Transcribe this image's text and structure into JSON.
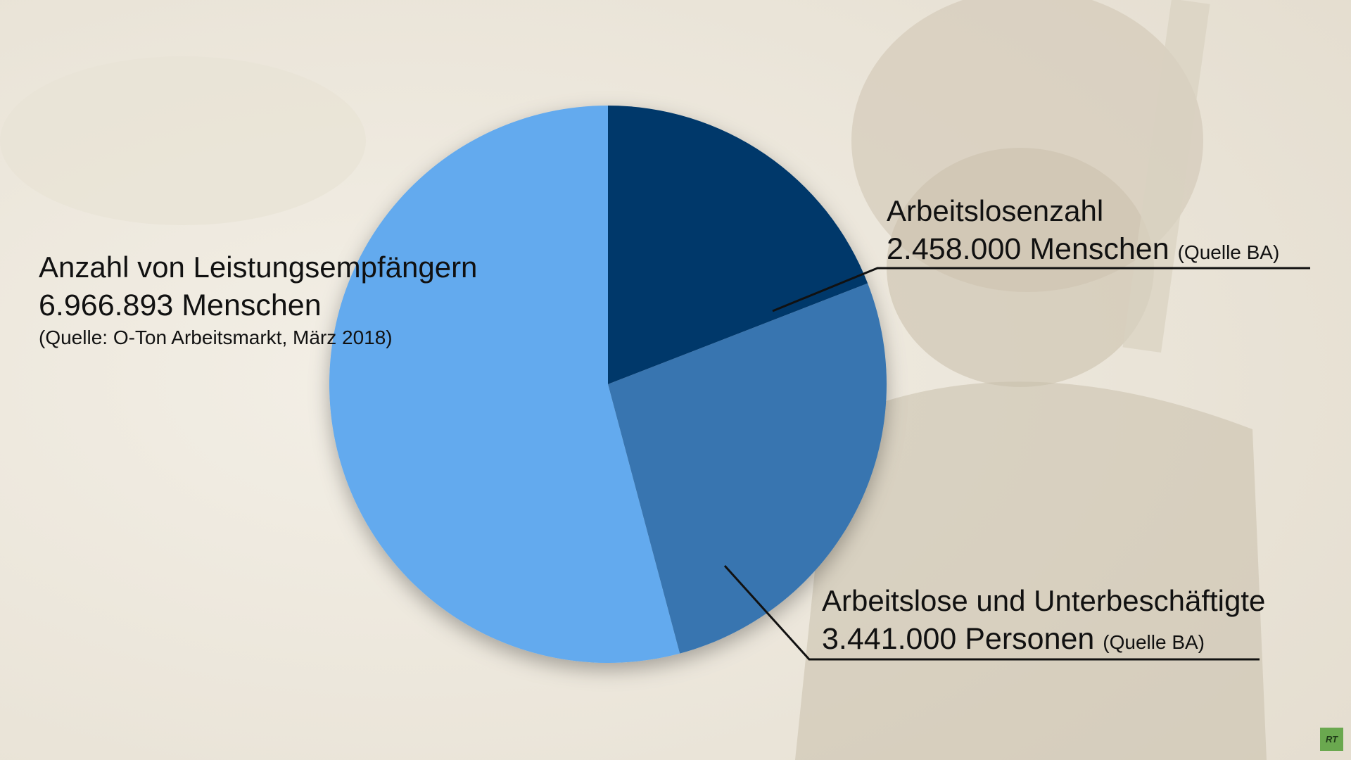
{
  "chart_data": {
    "type": "pie",
    "slices": [
      {
        "label": "Arbeitslosenzahl",
        "value": 2458000,
        "value_text": "2.458.000 Menschen",
        "source": "(Quelle BA)",
        "color": "#06376b"
      },
      {
        "label": "Arbeitslose und Unterbeschäftigte",
        "value": 3441000,
        "value_text": "3.441.000 Personen",
        "source": "(Quelle BA)",
        "color": "#3775b0"
      },
      {
        "label": "Anzahl von Leistungsempfängern",
        "value": 6966893,
        "value_text": "6.966.893 Menschen",
        "source": "(Quelle: O-Ton Arbeitsmarkt, März 2018)",
        "color": "#63aaee"
      }
    ]
  },
  "logo": {
    "text": "RT"
  },
  "colors": {
    "background": "#efebe2",
    "leader_line": "#111111",
    "logo": "#6aa84f"
  }
}
